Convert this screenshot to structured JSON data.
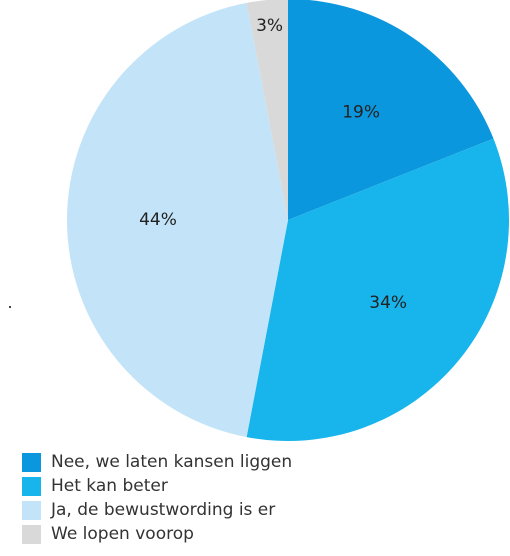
{
  "chart_data": {
    "type": "pie",
    "title": "",
    "start_angle_deg": 0,
    "direction": "clockwise",
    "slices": [
      {
        "label": "Nee, we laten kansen liggen",
        "value": 19,
        "value_label": "19%",
        "color": "#0b97dd"
      },
      {
        "label": "Het kan beter",
        "value": 34,
        "value_label": "34%",
        "color": "#18b4ec"
      },
      {
        "label": "Ja, de bewustwording is er",
        "value": 44,
        "value_label": "44%",
        "color": "#c3e4f8"
      },
      {
        "label": "We lopen voorop",
        "value": 3,
        "value_label": "3%",
        "color": "#d9d9d9"
      }
    ],
    "legend_position": "bottom-left"
  }
}
